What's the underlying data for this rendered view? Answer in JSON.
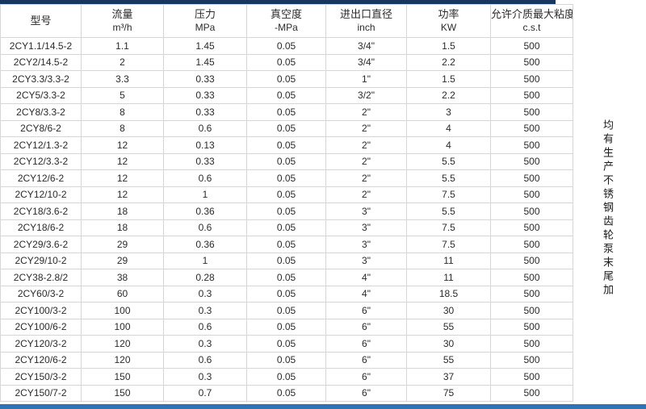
{
  "accent_colors": {
    "top_bar": "#17375E",
    "bottom_bar": "#2E74B5",
    "gridline": "#D6D6D6"
  },
  "table": {
    "columns": [
      {
        "label": "型号",
        "unit": ""
      },
      {
        "label": "流量",
        "unit": "m³/h"
      },
      {
        "label": "压力",
        "unit": "MPa"
      },
      {
        "label": "真空度",
        "unit": "-MPa"
      },
      {
        "label": "进出口直径",
        "unit": "inch"
      },
      {
        "label": "功率",
        "unit": "KW"
      },
      {
        "label": "允许介质最大粘度",
        "unit": "c.s.t"
      }
    ],
    "rows": [
      [
        "2CY1.1/14.5-2",
        "1.1",
        "1.45",
        "0.05",
        "3/4\"",
        "1.5",
        "500"
      ],
      [
        "2CY2/14.5-2",
        "2",
        "1.45",
        "0.05",
        "3/4\"",
        "2.2",
        "500"
      ],
      [
        "2CY3.3/3.3-2",
        "3.3",
        "0.33",
        "0.05",
        "1\"",
        "1.5",
        "500"
      ],
      [
        "2CY5/3.3-2",
        "5",
        "0.33",
        "0.05",
        "3/2\"",
        "2.2",
        "500"
      ],
      [
        "2CY8/3.3-2",
        "8",
        "0.33",
        "0.05",
        "2\"",
        "3",
        "500"
      ],
      [
        "2CY8/6-2",
        "8",
        "0.6",
        "0.05",
        "2\"",
        "4",
        "500"
      ],
      [
        "2CY12/1.3-2",
        "12",
        "0.13",
        "0.05",
        "2\"",
        "4",
        "500"
      ],
      [
        "2CY12/3.3-2",
        "12",
        "0.33",
        "0.05",
        "2\"",
        "5.5",
        "500"
      ],
      [
        "2CY12/6-2",
        "12",
        "0.6",
        "0.05",
        "2\"",
        "5.5",
        "500"
      ],
      [
        "2CY12/10-2",
        "12",
        "1",
        "0.05",
        "2\"",
        "7.5",
        "500"
      ],
      [
        "2CY18/3.6-2",
        "18",
        "0.36",
        "0.05",
        "3\"",
        "5.5",
        "500"
      ],
      [
        "2CY18/6-2",
        "18",
        "0.6",
        "0.05",
        "3\"",
        "7.5",
        "500"
      ],
      [
        "2CY29/3.6-2",
        "29",
        "0.36",
        "0.05",
        "3\"",
        "7.5",
        "500"
      ],
      [
        "2CY29/10-2",
        "29",
        "1",
        "0.05",
        "3\"",
        "11",
        "500"
      ],
      [
        "2CY38-2.8/2",
        "38",
        "0.28",
        "0.05",
        "4\"",
        "11",
        "500"
      ],
      [
        "2CY60/3-2",
        "60",
        "0.3",
        "0.05",
        "4\"",
        "18.5",
        "500"
      ],
      [
        "2CY100/3-2",
        "100",
        "0.3",
        "0.05",
        "6\"",
        "30",
        "500"
      ],
      [
        "2CY100/6-2",
        "100",
        "0.6",
        "0.05",
        "6\"",
        "55",
        "500"
      ],
      [
        "2CY120/3-2",
        "120",
        "0.3",
        "0.05",
        "6\"",
        "30",
        "500"
      ],
      [
        "2CY120/6-2",
        "120",
        "0.6",
        "0.05",
        "6\"",
        "55",
        "500"
      ],
      [
        "2CY150/3-2",
        "150",
        "0.3",
        "0.05",
        "6\"",
        "37",
        "500"
      ],
      [
        "2CY150/7-2",
        "150",
        "0.7",
        "0.05",
        "6\"",
        "75",
        "500"
      ]
    ]
  },
  "side_note": {
    "text": "均有生产不锈钢齿轮泵末尾加"
  }
}
